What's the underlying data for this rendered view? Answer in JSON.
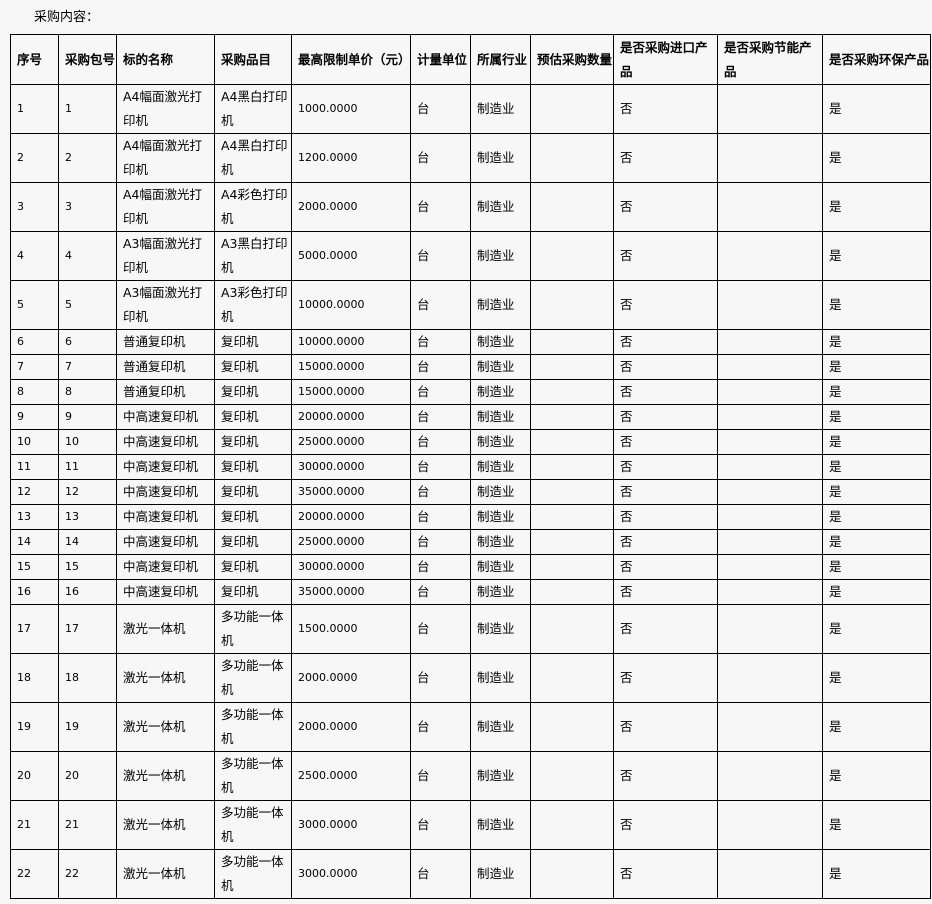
{
  "caption": "采购内容：",
  "headers": [
    "序号",
    "采购包号",
    "标的名称",
    "采购品目",
    "最高限制单价（元）",
    "计量单位",
    "所属行业",
    "预估采购数量",
    "是否采购进口产品",
    "是否采购节能产品",
    "是否采购环保产品"
  ],
  "rows": [
    [
      "1",
      "1",
      "A4幅面激光打印机",
      "A4黑白打印机",
      "1000.0000",
      "台",
      "制造业",
      "",
      "否",
      "",
      "是"
    ],
    [
      "2",
      "2",
      "A4幅面激光打印机",
      "A4黑白打印机",
      "1200.0000",
      "台",
      "制造业",
      "",
      "否",
      "",
      "是"
    ],
    [
      "3",
      "3",
      "A4幅面激光打印机",
      "A4彩色打印机",
      "2000.0000",
      "台",
      "制造业",
      "",
      "否",
      "",
      "是"
    ],
    [
      "4",
      "4",
      "A3幅面激光打印机",
      "A3黑白打印机",
      "5000.0000",
      "台",
      "制造业",
      "",
      "否",
      "",
      "是"
    ],
    [
      "5",
      "5",
      "A3幅面激光打印机",
      "A3彩色打印机",
      "10000.0000",
      "台",
      "制造业",
      "",
      "否",
      "",
      "是"
    ],
    [
      "6",
      "6",
      "普通复印机",
      "复印机",
      "10000.0000",
      "台",
      "制造业",
      "",
      "否",
      "",
      "是"
    ],
    [
      "7",
      "7",
      "普通复印机",
      "复印机",
      "15000.0000",
      "台",
      "制造业",
      "",
      "否",
      "",
      "是"
    ],
    [
      "8",
      "8",
      "普通复印机",
      "复印机",
      "15000.0000",
      "台",
      "制造业",
      "",
      "否",
      "",
      "是"
    ],
    [
      "9",
      "9",
      "中高速复印机",
      "复印机",
      "20000.0000",
      "台",
      "制造业",
      "",
      "否",
      "",
      "是"
    ],
    [
      "10",
      "10",
      "中高速复印机",
      "复印机",
      "25000.0000",
      "台",
      "制造业",
      "",
      "否",
      "",
      "是"
    ],
    [
      "11",
      "11",
      "中高速复印机",
      "复印机",
      "30000.0000",
      "台",
      "制造业",
      "",
      "否",
      "",
      "是"
    ],
    [
      "12",
      "12",
      "中高速复印机",
      "复印机",
      "35000.0000",
      "台",
      "制造业",
      "",
      "否",
      "",
      "是"
    ],
    [
      "13",
      "13",
      "中高速复印机",
      "复印机",
      "20000.0000",
      "台",
      "制造业",
      "",
      "否",
      "",
      "是"
    ],
    [
      "14",
      "14",
      "中高速复印机",
      "复印机",
      "25000.0000",
      "台",
      "制造业",
      "",
      "否",
      "",
      "是"
    ],
    [
      "15",
      "15",
      "中高速复印机",
      "复印机",
      "30000.0000",
      "台",
      "制造业",
      "",
      "否",
      "",
      "是"
    ],
    [
      "16",
      "16",
      "中高速复印机",
      "复印机",
      "35000.0000",
      "台",
      "制造业",
      "",
      "否",
      "",
      "是"
    ],
    [
      "17",
      "17",
      "激光一体机",
      "多功能一体机",
      "1500.0000",
      "台",
      "制造业",
      "",
      "否",
      "",
      "是"
    ],
    [
      "18",
      "18",
      "激光一体机",
      "多功能一体机",
      "2000.0000",
      "台",
      "制造业",
      "",
      "否",
      "",
      "是"
    ],
    [
      "19",
      "19",
      "激光一体机",
      "多功能一体机",
      "2000.0000",
      "台",
      "制造业",
      "",
      "否",
      "",
      "是"
    ],
    [
      "20",
      "20",
      "激光一体机",
      "多功能一体机",
      "2500.0000",
      "台",
      "制造业",
      "",
      "否",
      "",
      "是"
    ],
    [
      "21",
      "21",
      "激光一体机",
      "多功能一体机",
      "3000.0000",
      "台",
      "制造业",
      "",
      "否",
      "",
      "是"
    ],
    [
      "22",
      "22",
      "激光一体机",
      "多功能一体机",
      "3000.0000",
      "台",
      "制造业",
      "",
      "否",
      "",
      "是"
    ]
  ]
}
